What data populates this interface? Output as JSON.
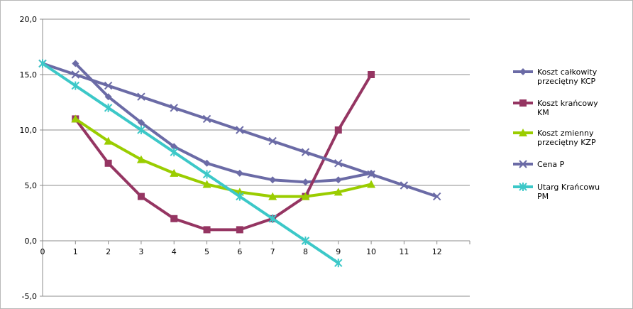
{
  "chart_data": {
    "type": "line",
    "title": "",
    "xlabel": "",
    "ylabel": "",
    "xlim": [
      0,
      13
    ],
    "ylim": [
      -5,
      20
    ],
    "x_ticks": [
      0,
      1,
      2,
      3,
      4,
      5,
      6,
      7,
      8,
      9,
      10,
      11,
      12
    ],
    "y_ticks": [
      -5,
      0,
      5,
      10,
      15,
      20
    ],
    "y_tick_labels": [
      "-5,0",
      "0,0",
      "5,0",
      "10,0",
      "15,0",
      "20,0"
    ],
    "grid": "horizontal",
    "legend_position": "right",
    "series": [
      {
        "name": "Koszt całkowity przeciętny KCP",
        "legend_lines": [
          "Koszt całkowity",
          "przeciętny KCP"
        ],
        "color": "#6b6ba6",
        "marker": "diamond",
        "x": [
          1,
          2,
          3,
          4,
          5,
          6,
          7,
          8,
          9,
          10
        ],
        "y": [
          16,
          13,
          10.67,
          8.5,
          7,
          6.1,
          5.5,
          5.3,
          5.5,
          6.1
        ]
      },
      {
        "name": "Koszt krańcowy KM",
        "legend_lines": [
          "Koszt krańcowy",
          "KM"
        ],
        "color": "#953562",
        "marker": "square",
        "x": [
          1,
          2,
          3,
          4,
          5,
          6,
          7,
          8,
          9,
          10
        ],
        "y": [
          11,
          7,
          4,
          2,
          1,
          1,
          2,
          4,
          10,
          15
        ]
      },
      {
        "name": "Koszt zmienny przeciętny KZP",
        "legend_lines": [
          "Koszt zmienny",
          "przeciętny KZP"
        ],
        "color": "#9acd00",
        "marker": "triangle",
        "x": [
          1,
          2,
          3,
          4,
          5,
          6,
          7,
          8,
          9,
          10
        ],
        "y": [
          11,
          9,
          7.33,
          6.1,
          5.1,
          4.4,
          4,
          4,
          4.4,
          5.1
        ]
      },
      {
        "name": "Cena P",
        "legend_lines": [
          "Cena P"
        ],
        "color": "#6b6ba6",
        "marker": "x",
        "x": [
          0,
          1,
          2,
          3,
          4,
          5,
          6,
          7,
          8,
          9,
          10,
          11,
          12
        ],
        "y": [
          16,
          15,
          14,
          13,
          12,
          11,
          10,
          9,
          8,
          7,
          6,
          5,
          4
        ]
      },
      {
        "name": "Utarg Krańcowu PM",
        "legend_lines": [
          "Utarg Krańcowu",
          "PM"
        ],
        "color": "#3cc8c8",
        "marker": "star",
        "x": [
          0,
          1,
          2,
          3,
          4,
          5,
          6,
          7,
          8,
          9
        ],
        "y": [
          16,
          14,
          12,
          10,
          8,
          6,
          4,
          2,
          0,
          -2
        ]
      }
    ]
  }
}
